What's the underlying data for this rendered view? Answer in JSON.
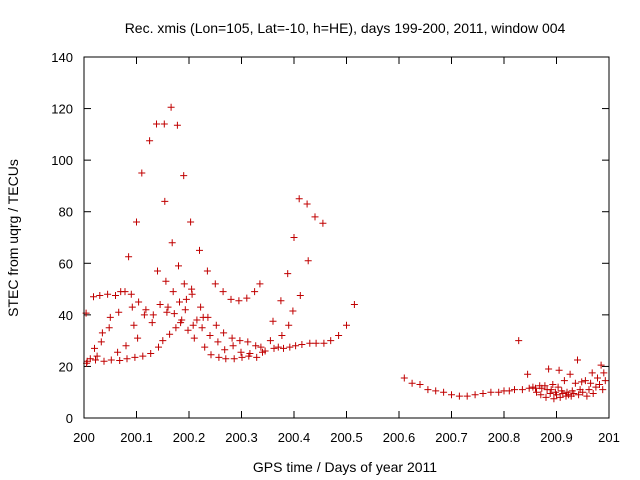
{
  "chart_data": {
    "type": "scatter",
    "title": "Rec. xmis (Lon=105, Lat=-10, h=HE), days 199-200, 2011, window 004",
    "xlabel": "GPS time / Days of year 2011",
    "ylabel": "STEC from uqrg / TECUs",
    "xlim": [
      200,
      201
    ],
    "ylim": [
      0,
      140
    ],
    "xticks": [
      "200",
      "200.1",
      "200.2",
      "200.3",
      "200.4",
      "200.5",
      "200.6",
      "200.7",
      "200.8",
      "200.9",
      "201"
    ],
    "yticks": [
      "0",
      "20",
      "40",
      "60",
      "80",
      "100",
      "120",
      "140"
    ],
    "marker": "+",
    "marker_color": "#c00000",
    "grid": false,
    "series": [
      {
        "name": "STEC",
        "points": [
          [
            200.004,
            40.7
          ],
          [
            200.005,
            21.2
          ],
          [
            200.006,
            22.0
          ],
          [
            200.012,
            23.0
          ],
          [
            200.018,
            47.0
          ],
          [
            200.02,
            27.0
          ],
          [
            200.022,
            22.5
          ],
          [
            200.025,
            24.0
          ],
          [
            200.03,
            47.5
          ],
          [
            200.033,
            29.5
          ],
          [
            200.035,
            33.0
          ],
          [
            200.038,
            22.0
          ],
          [
            200.045,
            48.0
          ],
          [
            200.048,
            35.0
          ],
          [
            200.05,
            39.0
          ],
          [
            200.052,
            22.5
          ],
          [
            200.06,
            47.5
          ],
          [
            200.064,
            25.5
          ],
          [
            200.066,
            41.0
          ],
          [
            200.068,
            22.3
          ],
          [
            200.07,
            49.0
          ],
          [
            200.078,
            49.0
          ],
          [
            200.08,
            28.0
          ],
          [
            200.082,
            23.0
          ],
          [
            200.085,
            62.5
          ],
          [
            200.09,
            48.0
          ],
          [
            200.092,
            43.0
          ],
          [
            200.095,
            36.0
          ],
          [
            200.097,
            23.5
          ],
          [
            200.1,
            76.0
          ],
          [
            200.102,
            31.0
          ],
          [
            200.104,
            45.0
          ],
          [
            200.11,
            95.0
          ],
          [
            200.112,
            24.0
          ],
          [
            200.115,
            40.0
          ],
          [
            200.118,
            42.0
          ],
          [
            200.125,
            107.5
          ],
          [
            200.127,
            25.0
          ],
          [
            200.13,
            37.0
          ],
          [
            200.132,
            40.0
          ],
          [
            200.138,
            114.0
          ],
          [
            200.14,
            57.0
          ],
          [
            200.142,
            27.5
          ],
          [
            200.145,
            44.0
          ],
          [
            200.15,
            30.0
          ],
          [
            200.153,
            114.0
          ],
          [
            200.154,
            84.0
          ],
          [
            200.156,
            53.0
          ],
          [
            200.158,
            41.0
          ],
          [
            200.16,
            43.0
          ],
          [
            200.163,
            32.5
          ],
          [
            200.166,
            120.5
          ],
          [
            200.168,
            68.0
          ],
          [
            200.17,
            49.0
          ],
          [
            200.172,
            40.5
          ],
          [
            200.175,
            35.0
          ],
          [
            200.178,
            113.5
          ],
          [
            200.18,
            59.0
          ],
          [
            200.182,
            45.0
          ],
          [
            200.184,
            37.0
          ],
          [
            200.186,
            38.0
          ],
          [
            200.19,
            94.0
          ],
          [
            200.191,
            52.0
          ],
          [
            200.193,
            42.0
          ],
          [
            200.195,
            46.0
          ],
          [
            200.198,
            34.0
          ],
          [
            200.203,
            76.0
          ],
          [
            200.205,
            50.0
          ],
          [
            200.206,
            48.0
          ],
          [
            200.208,
            36.0
          ],
          [
            200.21,
            31.0
          ],
          [
            200.215,
            38.0
          ],
          [
            200.22,
            65.0
          ],
          [
            200.222,
            43.0
          ],
          [
            200.225,
            35.0
          ],
          [
            200.227,
            39.0
          ],
          [
            200.23,
            27.5
          ],
          [
            200.235,
            57.0
          ],
          [
            200.236,
            39.0
          ],
          [
            200.24,
            32.0
          ],
          [
            200.242,
            24.5
          ],
          [
            200.25,
            52.0
          ],
          [
            200.252,
            36.0
          ],
          [
            200.255,
            29.5
          ],
          [
            200.257,
            23.5
          ],
          [
            200.265,
            49.0
          ],
          [
            200.266,
            33.0
          ],
          [
            200.268,
            26.5
          ],
          [
            200.27,
            23.0
          ],
          [
            200.28,
            46.0
          ],
          [
            200.282,
            31.0
          ],
          [
            200.284,
            28.0
          ],
          [
            200.286,
            23.0
          ],
          [
            200.295,
            45.5
          ],
          [
            200.297,
            30.0
          ],
          [
            200.299,
            25.5
          ],
          [
            200.301,
            23.5
          ],
          [
            200.31,
            46.5
          ],
          [
            200.312,
            29.5
          ],
          [
            200.314,
            24.0
          ],
          [
            200.316,
            25.0
          ],
          [
            200.325,
            49.0
          ],
          [
            200.327,
            28.0
          ],
          [
            200.329,
            23.5
          ],
          [
            200.335,
            52.0
          ],
          [
            200.337,
            27.5
          ],
          [
            200.34,
            25.5
          ],
          [
            200.345,
            26.0
          ],
          [
            200.355,
            30.0
          ],
          [
            200.36,
            37.5
          ],
          [
            200.362,
            27.0
          ],
          [
            200.37,
            27.5
          ],
          [
            200.375,
            45.5
          ],
          [
            200.377,
            32.0
          ],
          [
            200.38,
            27.0
          ],
          [
            200.388,
            56.0
          ],
          [
            200.39,
            36.0
          ],
          [
            200.392,
            27.5
          ],
          [
            200.398,
            41.5
          ],
          [
            200.4,
            70.0
          ],
          [
            200.403,
            28.0
          ],
          [
            200.41,
            85.0
          ],
          [
            200.412,
            47.5
          ],
          [
            200.415,
            28.5
          ],
          [
            200.425,
            83.0
          ],
          [
            200.427,
            61.0
          ],
          [
            200.43,
            29.0
          ],
          [
            200.44,
            78.0
          ],
          [
            200.442,
            29.0
          ],
          [
            200.455,
            75.5
          ],
          [
            200.457,
            29.0
          ],
          [
            200.47,
            30.0
          ],
          [
            200.485,
            32.0
          ],
          [
            200.5,
            36.0
          ],
          [
            200.515,
            44.0
          ],
          [
            200.61,
            15.5
          ],
          [
            200.625,
            13.5
          ],
          [
            200.64,
            13.0
          ],
          [
            200.655,
            11.0
          ],
          [
            200.67,
            10.5
          ],
          [
            200.685,
            10.0
          ],
          [
            200.7,
            9.0
          ],
          [
            200.715,
            8.5
          ],
          [
            200.73,
            8.5
          ],
          [
            200.745,
            9.0
          ],
          [
            200.76,
            9.5
          ],
          [
            200.775,
            10.0
          ],
          [
            200.79,
            10.0
          ],
          [
            200.8,
            10.5
          ],
          [
            200.81,
            10.5
          ],
          [
            200.82,
            11.0
          ],
          [
            200.828,
            30.0
          ],
          [
            200.835,
            11.0
          ],
          [
            200.845,
            17.0
          ],
          [
            200.848,
            11.5
          ],
          [
            200.855,
            12.0
          ],
          [
            200.86,
            11.5
          ],
          [
            200.862,
            10.0
          ],
          [
            200.868,
            12.5
          ],
          [
            200.87,
            9.0
          ],
          [
            200.872,
            11.5
          ],
          [
            200.878,
            12.5
          ],
          [
            200.88,
            8.0
          ],
          [
            200.882,
            11.0
          ],
          [
            200.885,
            19.0
          ],
          [
            200.888,
            9.5
          ],
          [
            200.89,
            11.0
          ],
          [
            200.893,
            13.0
          ],
          [
            200.895,
            7.5
          ],
          [
            200.898,
            10.0
          ],
          [
            200.9,
            9.0
          ],
          [
            200.903,
            12.0
          ],
          [
            200.905,
            18.5
          ],
          [
            200.907,
            8.0
          ],
          [
            200.91,
            10.5
          ],
          [
            200.912,
            9.5
          ],
          [
            200.915,
            14.5
          ],
          [
            200.918,
            8.5
          ],
          [
            200.92,
            10.0
          ],
          [
            200.923,
            9.0
          ],
          [
            200.926,
            17.0
          ],
          [
            200.928,
            8.5
          ],
          [
            200.93,
            10.5
          ],
          [
            200.933,
            9.5
          ],
          [
            200.936,
            13.5
          ],
          [
            200.94,
            22.5
          ],
          [
            200.942,
            9.0
          ],
          [
            200.945,
            11.0
          ],
          [
            200.948,
            14.0
          ],
          [
            200.95,
            10.0
          ],
          [
            200.955,
            14.5
          ],
          [
            200.958,
            8.5
          ],
          [
            200.962,
            11.0
          ],
          [
            200.965,
            13.5
          ],
          [
            200.968,
            17.5
          ],
          [
            200.97,
            9.5
          ],
          [
            200.975,
            12.0
          ],
          [
            200.978,
            15.5
          ],
          [
            200.982,
            13.0
          ],
          [
            200.985,
            20.5
          ],
          [
            200.988,
            11.0
          ],
          [
            200.99,
            17.5
          ],
          [
            200.993,
            14.5
          ]
        ]
      }
    ]
  }
}
